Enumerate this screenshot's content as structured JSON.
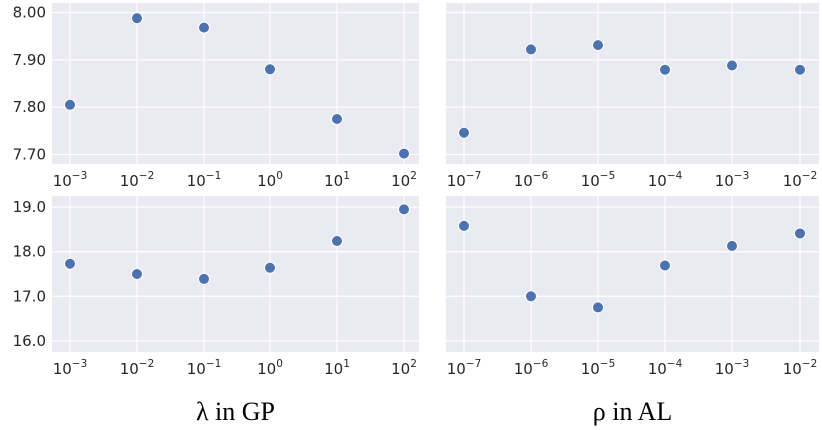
{
  "chart_data": [
    {
      "type": "scatter",
      "panel": "top-left",
      "x_scale": "log",
      "x": [
        0.001,
        0.01,
        0.1,
        1,
        10,
        100
      ],
      "x_ticks": [
        {
          "base": "10",
          "exp": "−3"
        },
        {
          "base": "10",
          "exp": "−2"
        },
        {
          "base": "10",
          "exp": "−1"
        },
        {
          "base": "10",
          "exp": "0"
        },
        {
          "base": "10",
          "exp": "1"
        },
        {
          "base": "10",
          "exp": "2"
        }
      ],
      "y": [
        7.805,
        7.988,
        7.968,
        7.88,
        7.775,
        7.702
      ],
      "y_ticks": [
        "8.00",
        "7.90",
        "7.80",
        "7.70"
      ],
      "y_tick_values": [
        8.0,
        7.9,
        7.8,
        7.7
      ],
      "ylim": [
        7.68,
        8.02
      ],
      "grid": true,
      "xlabel": ""
    },
    {
      "type": "scatter",
      "panel": "top-right",
      "x_scale": "log",
      "x": [
        1e-07,
        1e-06,
        1e-05,
        0.0001,
        0.001,
        0.01
      ],
      "x_ticks": [
        {
          "base": "10",
          "exp": "−7"
        },
        {
          "base": "10",
          "exp": "−6"
        },
        {
          "base": "10",
          "exp": "−5"
        },
        {
          "base": "10",
          "exp": "−4"
        },
        {
          "base": "10",
          "exp": "−3"
        },
        {
          "base": "10",
          "exp": "−2"
        }
      ],
      "y": [
        7.746,
        7.922,
        7.931,
        7.879,
        7.888,
        7.879
      ],
      "y_ticks": [],
      "ylim": [
        7.68,
        8.02
      ],
      "grid": true,
      "xlabel": ""
    },
    {
      "type": "scatter",
      "panel": "bottom-left",
      "x_scale": "log",
      "x": [
        0.001,
        0.01,
        0.1,
        1,
        10,
        100
      ],
      "x_ticks": [
        {
          "base": "10",
          "exp": "−3"
        },
        {
          "base": "10",
          "exp": "−2"
        },
        {
          "base": "10",
          "exp": "−1"
        },
        {
          "base": "10",
          "exp": "0"
        },
        {
          "base": "10",
          "exp": "1"
        },
        {
          "base": "10",
          "exp": "2"
        }
      ],
      "y": [
        17.73,
        17.5,
        17.39,
        17.64,
        18.24,
        18.95
      ],
      "y_ticks": [
        "19.0",
        "18.0",
        "17.0",
        "16.0"
      ],
      "y_tick_values": [
        19.0,
        18.0,
        17.0,
        16.0
      ],
      "ylim": [
        15.75,
        19.25
      ],
      "grid": true,
      "xlabel": "λ in GP"
    },
    {
      "type": "scatter",
      "panel": "bottom-right",
      "x_scale": "log",
      "x": [
        1e-07,
        1e-06,
        1e-05,
        0.0001,
        0.001,
        0.01
      ],
      "x_ticks": [
        {
          "base": "10",
          "exp": "−7"
        },
        {
          "base": "10",
          "exp": "−6"
        },
        {
          "base": "10",
          "exp": "−5"
        },
        {
          "base": "10",
          "exp": "−4"
        },
        {
          "base": "10",
          "exp": "−3"
        },
        {
          "base": "10",
          "exp": "−2"
        }
      ],
      "y": [
        18.58,
        17.0,
        16.75,
        17.69,
        18.13,
        18.41
      ],
      "y_ticks": [],
      "ylim": [
        15.75,
        19.25
      ],
      "grid": true,
      "xlabel": "ρ in AL"
    }
  ],
  "colors": {
    "panel_background": "#eaeaf2",
    "grid": "#ffffff",
    "marker": "#4c72b0",
    "marker_edge": "#ffffff"
  }
}
